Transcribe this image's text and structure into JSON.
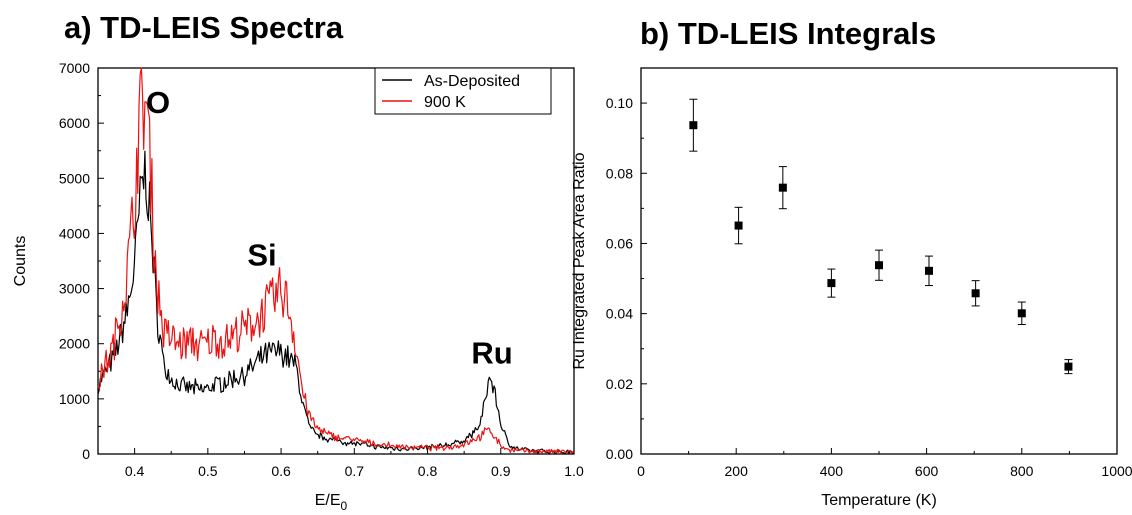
{
  "chart_data": [
    {
      "type": "line",
      "title": "a) TD-LEIS Spectra",
      "xlabel_main": "E/E",
      "xlabel_sub": "0",
      "ylabel": "Counts",
      "xlim": [
        0.35,
        1.0
      ],
      "ylim": [
        0,
        7000
      ],
      "x_ticks": [
        0.4,
        0.5,
        0.6,
        0.7,
        0.8,
        0.9,
        1.0
      ],
      "x_tick_labels": [
        "0.4",
        "0.5",
        "0.6",
        "0.7",
        "0.8",
        "0.9",
        "1.0"
      ],
      "y_ticks": [
        0,
        1000,
        2000,
        3000,
        4000,
        5000,
        6000,
        7000
      ],
      "y_tick_labels": [
        "0",
        "1000",
        "2000",
        "3000",
        "4000",
        "5000",
        "6000",
        "7000"
      ],
      "grid": false,
      "legend_position": "top-right",
      "annotations": [
        {
          "text": "O",
          "x": 0.432,
          "y": 6180
        },
        {
          "text": "Si",
          "x": 0.574,
          "y": 3420
        },
        {
          "text": "Ru",
          "x": 0.888,
          "y": 1640
        }
      ],
      "series": [
        {
          "name": "As-Deposited",
          "color": "#000000",
          "x": [
            0.35,
            0.36,
            0.37,
            0.38,
            0.39,
            0.4,
            0.405,
            0.41,
            0.415,
            0.42,
            0.425,
            0.43,
            0.44,
            0.45,
            0.46,
            0.47,
            0.48,
            0.49,
            0.5,
            0.51,
            0.52,
            0.53,
            0.54,
            0.55,
            0.56,
            0.57,
            0.58,
            0.59,
            0.6,
            0.61,
            0.62,
            0.63,
            0.64,
            0.65,
            0.66,
            0.67,
            0.68,
            0.69,
            0.7,
            0.72,
            0.74,
            0.76,
            0.78,
            0.8,
            0.82,
            0.84,
            0.85,
            0.86,
            0.87,
            0.875,
            0.88,
            0.885,
            0.89,
            0.895,
            0.9,
            0.91,
            0.92,
            0.94,
            0.96,
            0.98,
            1.0
          ],
          "y": [
            1200,
            1500,
            1700,
            2100,
            2600,
            3400,
            4200,
            4900,
            5150,
            4500,
            3600,
            2600,
            1600,
            1350,
            1250,
            1200,
            1200,
            1150,
            1200,
            1250,
            1300,
            1350,
            1400,
            1450,
            1550,
            1700,
            1800,
            1850,
            1850,
            1750,
            1600,
            900,
            450,
            350,
            300,
            250,
            250,
            200,
            200,
            150,
            120,
            100,
            100,
            120,
            150,
            200,
            250,
            350,
            500,
            700,
            1100,
            1400,
            1200,
            900,
            550,
            200,
            100,
            60,
            50,
            40,
            40
          ]
        },
        {
          "name": "900 K",
          "color": "#ee1111",
          "x": [
            0.35,
            0.36,
            0.37,
            0.38,
            0.39,
            0.4,
            0.405,
            0.41,
            0.415,
            0.42,
            0.425,
            0.43,
            0.44,
            0.45,
            0.46,
            0.47,
            0.48,
            0.49,
            0.5,
            0.51,
            0.52,
            0.53,
            0.54,
            0.55,
            0.56,
            0.57,
            0.58,
            0.59,
            0.6,
            0.605,
            0.61,
            0.62,
            0.63,
            0.64,
            0.65,
            0.66,
            0.67,
            0.68,
            0.69,
            0.7,
            0.72,
            0.74,
            0.76,
            0.78,
            0.8,
            0.82,
            0.84,
            0.85,
            0.86,
            0.87,
            0.88,
            0.885,
            0.89,
            0.895,
            0.9,
            0.91,
            0.92,
            0.94,
            0.96,
            0.98,
            1.0
          ],
          "y": [
            1300,
            1600,
            1900,
            2500,
            3300,
            4600,
            5800,
            6400,
            6450,
            5600,
            4300,
            3100,
            2200,
            2100,
            2000,
            2000,
            2050,
            1950,
            2000,
            2100,
            2050,
            2100,
            2200,
            2250,
            2350,
            2500,
            2650,
            2800,
            2950,
            2900,
            2700,
            2000,
            1100,
            650,
            450,
            380,
            330,
            300,
            280,
            260,
            200,
            160,
            140,
            120,
            110,
            110,
            150,
            180,
            250,
            300,
            400,
            450,
            350,
            250,
            150,
            80,
            60,
            50,
            50,
            40,
            40
          ]
        }
      ]
    },
    {
      "type": "scatter",
      "title": "b) TD-LEIS Integrals",
      "xlabel": "Temperature (K)",
      "ylabel": "Ru Integrated Peak Area Ratio",
      "xlim": [
        0,
        1000
      ],
      "ylim": [
        0,
        0.11
      ],
      "x_ticks": [
        0,
        200,
        400,
        600,
        800,
        1000
      ],
      "x_tick_labels": [
        "0",
        "200",
        "400",
        "600",
        "800",
        "1000"
      ],
      "y_ticks": [
        0.0,
        0.02,
        0.04,
        0.06,
        0.08,
        0.1
      ],
      "y_tick_labels": [
        "0.00",
        "0.02",
        "0.04",
        "0.06",
        "0.08",
        "0.10"
      ],
      "grid": false,
      "series": [
        {
          "color": "#000000",
          "x": [
            110,
            205,
            298,
            400,
            500,
            605,
            703,
            800,
            898
          ],
          "y": [
            0.0937,
            0.0651,
            0.0759,
            0.0487,
            0.0538,
            0.0522,
            0.0458,
            0.0401,
            0.0249
          ],
          "error": [
            0.0074,
            0.0052,
            0.006,
            0.004,
            0.0043,
            0.0042,
            0.0036,
            0.0032,
            0.002
          ]
        }
      ]
    }
  ]
}
